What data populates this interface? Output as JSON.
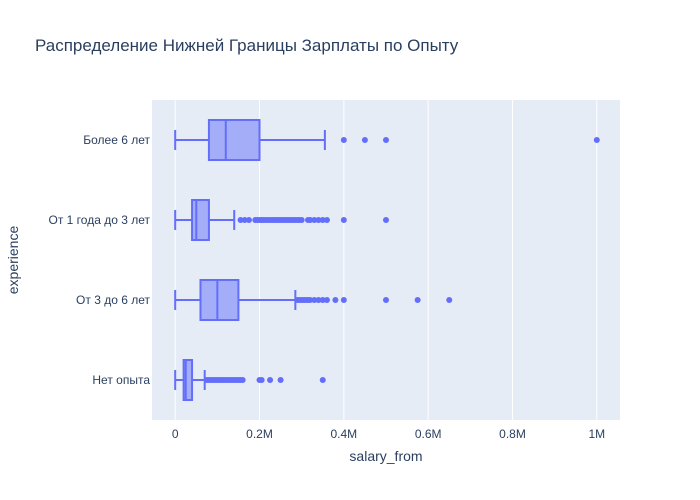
{
  "chart_data": {
    "type": "box",
    "orientation": "horizontal",
    "title": "Распределение Нижней Границы Зарплаты по Опыту",
    "xlabel": "salary_from",
    "ylabel": "experience",
    "xlim": [
      -55000,
      1055000
    ],
    "x_ticks": [
      {
        "value": 0,
        "label": "0"
      },
      {
        "value": 200000,
        "label": "0.2M"
      },
      {
        "value": 400000,
        "label": "0.4M"
      },
      {
        "value": 600000,
        "label": "0.6M"
      },
      {
        "value": 800000,
        "label": "0.8M"
      },
      {
        "value": 1000000,
        "label": "1M"
      }
    ],
    "grid": true,
    "colors": {
      "box_line": "#636efa",
      "box_fill": "rgba(99,110,250,0.5)",
      "plot_bg": "#e5ecf6",
      "grid": "#ffffff",
      "text": "#2a3f5f"
    },
    "categories": [
      "Более 6 лет",
      "От 1 года до 3 лет",
      "От 3 до 6 лет",
      "Нет опыта"
    ],
    "boxes": [
      {
        "category": "Более 6 лет",
        "min": 0,
        "q1": 80000,
        "median": 120000,
        "q3": 200000,
        "max": 355000,
        "outliers": [
          400000,
          450000,
          500000,
          1000000
        ]
      },
      {
        "category": "От 1 года до 3 лет",
        "min": 0,
        "q1": 40000,
        "median": 50000,
        "q3": 80000,
        "max": 140000,
        "outliers": [
          155000,
          165000,
          175000,
          190000,
          195000,
          200000,
          205000,
          210000,
          215000,
          220000,
          225000,
          230000,
          235000,
          240000,
          245000,
          250000,
          255000,
          260000,
          265000,
          270000,
          275000,
          280000,
          285000,
          290000,
          295000,
          300000,
          315000,
          320000,
          330000,
          340000,
          350000,
          360000,
          400000,
          500000
        ]
      },
      {
        "category": "От 3 до 6 лет",
        "min": 0,
        "q1": 60000,
        "median": 100000,
        "q3": 150000,
        "max": 285000,
        "outliers": [
          290000,
          295000,
          300000,
          305000,
          310000,
          315000,
          320000,
          330000,
          340000,
          350000,
          360000,
          380000,
          400000,
          500000,
          575000,
          650000
        ]
      },
      {
        "category": "Нет опыта",
        "min": 0,
        "q1": 20000,
        "median": 25000,
        "q3": 40000,
        "max": 70000,
        "outliers": [
          75000,
          80000,
          85000,
          90000,
          95000,
          100000,
          105000,
          110000,
          115000,
          120000,
          125000,
          130000,
          135000,
          140000,
          145000,
          150000,
          155000,
          160000,
          200000,
          205000,
          225000,
          250000,
          350000
        ]
      }
    ]
  }
}
